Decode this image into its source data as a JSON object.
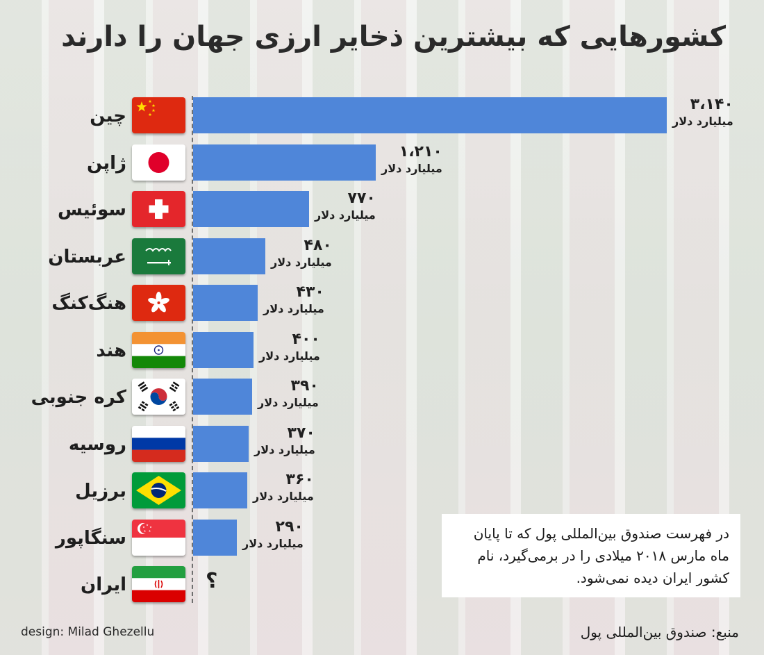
{
  "title": "کشورهایی که بیشترین ذخایر ارزی جهان را دارند",
  "chart_data": {
    "type": "bar",
    "orientation": "horizontal",
    "title": "کشورهایی که بیشترین ذخایر ارزی جهان را دارند",
    "categories": [
      "چین",
      "ژاپن",
      "سوئیس",
      "عربستان",
      "هنگ‌کنگ",
      "هند",
      "کره جنوبی",
      "روسیه",
      "برزیل",
      "سنگاپور",
      "ایران"
    ],
    "values": [
      3140,
      1210,
      770,
      480,
      430,
      400,
      390,
      370,
      360,
      290,
      null
    ],
    "value_labels": [
      "۳،۱۴۰",
      "۱،۲۱۰",
      "۷۷۰",
      "۴۸۰",
      "۴۳۰",
      "۴۰۰",
      "۳۹۰",
      "۳۷۰",
      "۳۶۰",
      "۲۹۰",
      "؟"
    ],
    "unit": "میلیارد دلار",
    "bar_color": "#4f86d9",
    "xlim": [
      0,
      3140
    ]
  },
  "flags": [
    "china-flag",
    "japan-flag",
    "switzerland-flag",
    "saudi-arabia-flag",
    "hong-kong-flag",
    "india-flag",
    "south-korea-flag",
    "russia-flag",
    "brazil-flag",
    "singapore-flag",
    "iran-flag"
  ],
  "note": "در فهرست صندوق بین‌المللی پول که تا پایان ماه مارس ۲۰۱۸ میلادی را در برمی‌گیرد، نام کشور ایران دیده نمی‌شود.",
  "credit": "design: Milad Ghezellu",
  "source": "منبع: صندوق بین‌المللی پول"
}
